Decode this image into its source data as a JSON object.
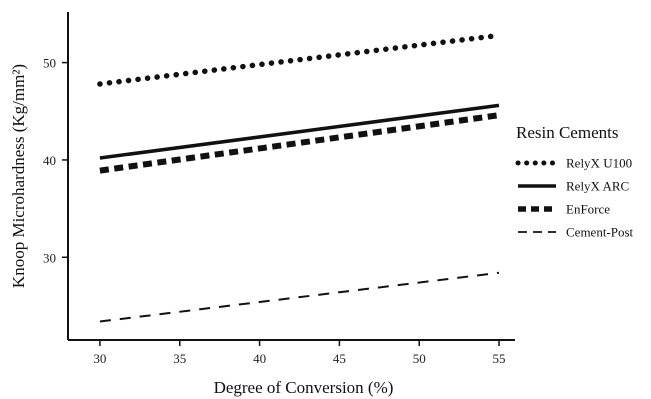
{
  "chart_data": {
    "type": "line",
    "xlabel": "Degree of Conversion (%)",
    "ylabel": "Knoop Microhardness  (Kg/mm²)",
    "xlim": [
      28,
      56
    ],
    "ylim": [
      21.5,
      55.2
    ],
    "x_ticks": [
      30,
      35,
      40,
      45,
      50,
      55
    ],
    "y_ticks": [
      30,
      40,
      50
    ],
    "grid": false,
    "legend": {
      "title": "Resin Cements",
      "position": "right"
    },
    "series": [
      {
        "name": "RelyX U100",
        "style": "dotted",
        "x": [
          30,
          55
        ],
        "y": [
          47.8,
          52.8
        ]
      },
      {
        "name": "RelyX ARC",
        "style": "solid",
        "x": [
          30,
          55
        ],
        "y": [
          40.2,
          45.6
        ]
      },
      {
        "name": "EnForce",
        "style": "dashed-thick",
        "x": [
          30,
          55
        ],
        "y": [
          38.9,
          44.6
        ]
      },
      {
        "name": "Cement-Post",
        "style": "dashed-thin",
        "x": [
          30,
          55
        ],
        "y": [
          23.4,
          28.4
        ]
      }
    ]
  }
}
